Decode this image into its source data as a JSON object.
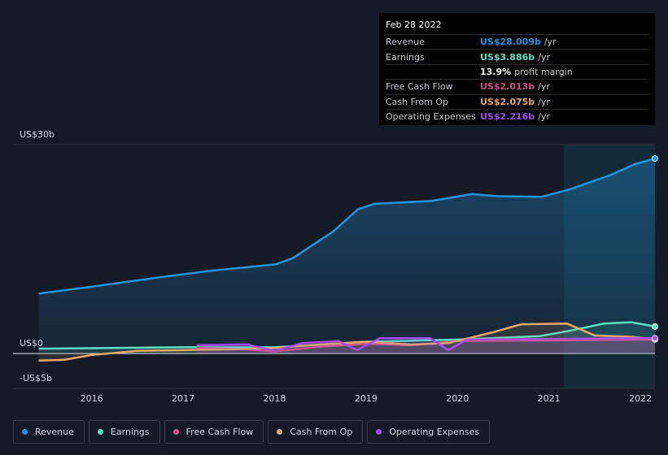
{
  "chart_data": {
    "type": "line",
    "x": null,
    "xlim": [
      2015.14,
      2022.16
    ],
    "xticks": [
      2016,
      2017,
      2018,
      2019,
      2020,
      2021,
      2022
    ],
    "ylim": [
      -5,
      30
    ],
    "yticks": [
      {
        "value": 30,
        "label": "US$30b"
      },
      {
        "value": 0,
        "label": "US$0"
      },
      {
        "value": -5,
        "label": "-US$5b"
      }
    ],
    "series": [
      {
        "name": "Revenue",
        "color": "#2394df",
        "x": [
          2015.42,
          2016,
          2016.77,
          2017.31,
          2018.01,
          2018.2,
          2018.64,
          2018.91,
          2019.09,
          2019.71,
          2020.16,
          2020.43,
          2020.92,
          2021.23,
          2021.67,
          2021.94,
          2022.16
        ],
        "values": [
          8.6,
          9.6,
          11.0,
          11.9,
          12.8,
          13.7,
          17.5,
          20.7,
          21.5,
          21.9,
          22.9,
          22.6,
          22.5,
          23.6,
          25.6,
          27.2,
          28.009
        ]
      },
      {
        "name": "Earnings",
        "color": "#5de2c6",
        "x": [
          2015.42,
          2017,
          2018,
          2019,
          2020,
          2020.9,
          2021.2,
          2021.6,
          2021.9,
          2022.16
        ],
        "values": [
          0.7,
          0.9,
          0.9,
          1.7,
          2.0,
          2.5,
          3.2,
          4.3,
          4.5,
          3.886
        ]
      },
      {
        "name": "Free Cash Flow",
        "color": "#d24d8a",
        "x": [
          2017.15,
          2017.7,
          2018,
          2018.5,
          2019,
          2019.5,
          2020,
          2021,
          2022.16
        ],
        "values": [
          0.8,
          0.6,
          0.3,
          1.0,
          1.4,
          1.2,
          1.8,
          1.9,
          2.013
        ]
      },
      {
        "name": "Cash From Op",
        "color": "#e9a96b",
        "x": [
          2015.42,
          2015.7,
          2016,
          2016.5,
          2017,
          2017.5,
          2018,
          2018.5,
          2019,
          2019.5,
          2019.9,
          2020.4,
          2020.7,
          2021.2,
          2021.5,
          2021.9,
          2022.16
        ],
        "values": [
          -1.0,
          -0.9,
          -0.2,
          0.4,
          0.5,
          0.6,
          0.8,
          1.3,
          1.7,
          1.3,
          1.5,
          3.1,
          4.2,
          4.3,
          2.6,
          2.4,
          2.075
        ]
      },
      {
        "name": "Operating Expenses",
        "color": "#a64cf0",
        "x": [
          2017.15,
          2017.7,
          2018,
          2018.3,
          2018.7,
          2018.9,
          2019.15,
          2019.7,
          2019.9,
          2020.1,
          2021,
          2022.16
        ],
        "values": [
          1.2,
          1.3,
          0.4,
          1.5,
          1.8,
          0.5,
          2.2,
          2.2,
          0.5,
          2.0,
          2.1,
          2.216
        ]
      }
    ]
  },
  "tooltip": {
    "date": "Feb 28 2022",
    "rows": [
      {
        "label": "Revenue",
        "value": "US$28.009b",
        "unit": "/yr"
      },
      {
        "label": "Earnings",
        "value": "US$3.886b",
        "unit": "/yr"
      },
      {
        "label": "Free Cash Flow",
        "value": "US$2.013b",
        "unit": "/yr"
      },
      {
        "label": "Cash From Op",
        "value": "US$2.075b",
        "unit": "/yr"
      },
      {
        "label": "Operating Expenses",
        "value": "US$2.216b",
        "unit": "/yr"
      }
    ],
    "margin": {
      "value": "13.9%",
      "label": "profit margin"
    }
  }
}
